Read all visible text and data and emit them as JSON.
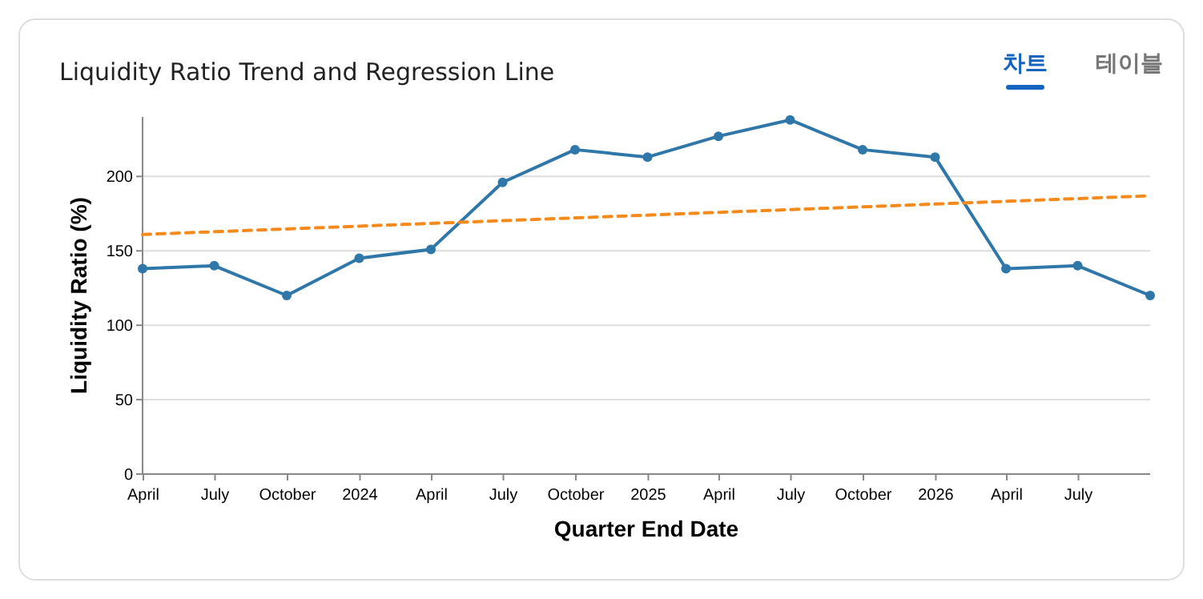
{
  "chart_data": {
    "type": "line",
    "title": "Liquidity Ratio Trend and Regression Line",
    "xlabel": "Quarter End Date",
    "ylabel": "Liquidity Ratio (%)",
    "annotations": [
      "차트",
      "테이블"
    ],
    "x": [
      "2023-03-31",
      "2023-06-30",
      "2023-09-30",
      "2023-12-31",
      "2024-03-31",
      "2024-06-30",
      "2024-09-30",
      "2024-12-31",
      "2025-03-31",
      "2025-06-30",
      "2025-09-30",
      "2025-12-31",
      "2026-03-31",
      "2026-06-30",
      "2026-09-30"
    ],
    "series": [
      {
        "color": "#2f77a8",
        "values": [
          138,
          140,
          120,
          145,
          151,
          196,
          218,
          213,
          227,
          238,
          218,
          213,
          138,
          140,
          120
        ]
      },
      {
        "type": "line",
        "color": "#f28a1e",
        "x": [
          "2023-03-31",
          "2026-09-30"
        ],
        "values": [
          161,
          187
        ],
        "marker": "none",
        "line_style": "dashed"
      }
    ],
    "xlim": [
      "2023-03-31",
      "2026-09-30"
    ],
    "xticks": [
      {
        "value": "2023-04-01",
        "label": "April"
      },
      {
        "value": "2023-07-01",
        "label": "July"
      },
      {
        "value": "2023-10-01",
        "label": "October"
      },
      {
        "value": "2024-01-01",
        "label": "2024"
      },
      {
        "value": "2024-04-01",
        "label": "April"
      },
      {
        "value": "2024-07-01",
        "label": "July"
      },
      {
        "value": "2024-10-01",
        "label": "October"
      },
      {
        "value": "2025-01-01",
        "label": "2025"
      },
      {
        "value": "2025-04-01",
        "label": "April"
      },
      {
        "value": "2025-07-01",
        "label": "July"
      },
      {
        "value": "2025-10-01",
        "label": "October"
      },
      {
        "value": "2026-01-01",
        "label": "2026"
      },
      {
        "value": "2026-04-01",
        "label": "April"
      },
      {
        "value": "2026-07-01",
        "label": "July"
      }
    ],
    "ylim": [
      0,
      240
    ],
    "yticks": [
      0,
      50,
      100,
      150,
      200
    ],
    "grid": "y",
    "marker": "circle",
    "line_style": "solid"
  }
}
